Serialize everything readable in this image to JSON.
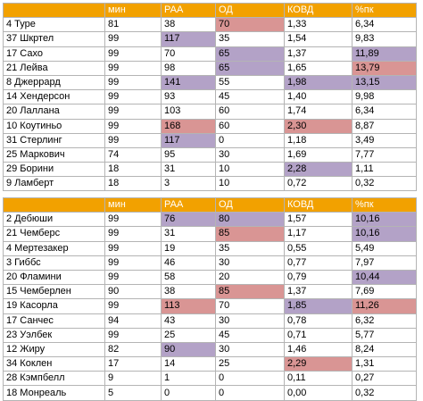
{
  "colors": {
    "header_bg": "#f2a100",
    "header_text": "#ffffff",
    "highlight_purple": "#b3a2c7",
    "highlight_red": "#d99594"
  },
  "table1": {
    "headers": [
      "",
      "мин",
      "РАА",
      "ОД",
      "КОВД",
      "%пк"
    ],
    "rows": [
      [
        {
          "v": "4 Туре"
        },
        {
          "v": "81"
        },
        {
          "v": "38"
        },
        {
          "v": "70",
          "h": "red"
        },
        {
          "v": "1,33"
        },
        {
          "v": "6,34"
        }
      ],
      [
        {
          "v": "37 Шкртел"
        },
        {
          "v": "99"
        },
        {
          "v": "117",
          "h": "purple"
        },
        {
          "v": "35"
        },
        {
          "v": "1,54"
        },
        {
          "v": "9,83"
        }
      ],
      [
        {
          "v": "17 Сахо"
        },
        {
          "v": "99"
        },
        {
          "v": "70"
        },
        {
          "v": "65",
          "h": "purple"
        },
        {
          "v": "1,37"
        },
        {
          "v": "11,89",
          "h": "purple"
        }
      ],
      [
        {
          "v": "21 Лейва"
        },
        {
          "v": "99"
        },
        {
          "v": "98"
        },
        {
          "v": "65",
          "h": "purple"
        },
        {
          "v": "1,65"
        },
        {
          "v": "13,79",
          "h": "red"
        }
      ],
      [
        {
          "v": "8 Джеррард"
        },
        {
          "v": "99"
        },
        {
          "v": "141",
          "h": "purple"
        },
        {
          "v": "55"
        },
        {
          "v": "1,98",
          "h": "purple"
        },
        {
          "v": "13,15",
          "h": "purple"
        }
      ],
      [
        {
          "v": "14 Хендерсон"
        },
        {
          "v": "99"
        },
        {
          "v": "93"
        },
        {
          "v": "45"
        },
        {
          "v": "1,40"
        },
        {
          "v": "9,98"
        }
      ],
      [
        {
          "v": "20 Лаллана"
        },
        {
          "v": "99"
        },
        {
          "v": "103"
        },
        {
          "v": "60"
        },
        {
          "v": "1,74"
        },
        {
          "v": "6,34"
        }
      ],
      [
        {
          "v": "10 Коутиньо"
        },
        {
          "v": "99"
        },
        {
          "v": "168",
          "h": "red"
        },
        {
          "v": "60"
        },
        {
          "v": "2,30",
          "h": "red"
        },
        {
          "v": "8,87"
        }
      ],
      [
        {
          "v": "31 Стерлинг"
        },
        {
          "v": "99"
        },
        {
          "v": "117",
          "h": "purple"
        },
        {
          "v": "0"
        },
        {
          "v": "1,18"
        },
        {
          "v": "3,49"
        }
      ],
      [
        {
          "v": "25 Маркович"
        },
        {
          "v": "74"
        },
        {
          "v": "95"
        },
        {
          "v": "30"
        },
        {
          "v": "1,69"
        },
        {
          "v": "7,77"
        }
      ],
      [
        {
          "v": "29 Борини"
        },
        {
          "v": "18"
        },
        {
          "v": "31"
        },
        {
          "v": "10"
        },
        {
          "v": "2,28",
          "h": "purple"
        },
        {
          "v": "1,11"
        }
      ],
      [
        {
          "v": "9 Ламберт"
        },
        {
          "v": "18"
        },
        {
          "v": "3"
        },
        {
          "v": "10"
        },
        {
          "v": "0,72"
        },
        {
          "v": "0,32"
        }
      ]
    ]
  },
  "table2": {
    "headers": [
      "",
      "мин",
      "РАА",
      "ОД",
      "КОВД",
      "%пк"
    ],
    "rows": [
      [
        {
          "v": "2 Дебюши"
        },
        {
          "v": "99"
        },
        {
          "v": "76",
          "h": "purple"
        },
        {
          "v": "80",
          "h": "purple"
        },
        {
          "v": "1,57"
        },
        {
          "v": "10,16",
          "h": "purple"
        }
      ],
      [
        {
          "v": "21 Чемберс"
        },
        {
          "v": "99"
        },
        {
          "v": "31"
        },
        {
          "v": "85",
          "h": "red"
        },
        {
          "v": "1,17"
        },
        {
          "v": "10,16",
          "h": "purple"
        }
      ],
      [
        {
          "v": "4 Мертезакер"
        },
        {
          "v": "99"
        },
        {
          "v": "19"
        },
        {
          "v": "35"
        },
        {
          "v": "0,55"
        },
        {
          "v": "5,49"
        }
      ],
      [
        {
          "v": "3 Гиббс"
        },
        {
          "v": "99"
        },
        {
          "v": "46"
        },
        {
          "v": "30"
        },
        {
          "v": "0,77"
        },
        {
          "v": "7,97"
        }
      ],
      [
        {
          "v": "20 Фламини"
        },
        {
          "v": "99"
        },
        {
          "v": "58"
        },
        {
          "v": "20"
        },
        {
          "v": "0,79"
        },
        {
          "v": "10,44",
          "h": "purple"
        }
      ],
      [
        {
          "v": "15 Чемберлен"
        },
        {
          "v": "90"
        },
        {
          "v": "38"
        },
        {
          "v": "85",
          "h": "red"
        },
        {
          "v": "1,37"
        },
        {
          "v": "7,69"
        }
      ],
      [
        {
          "v": "19 Касорла"
        },
        {
          "v": "99"
        },
        {
          "v": "113",
          "h": "red"
        },
        {
          "v": "70"
        },
        {
          "v": "1,85",
          "h": "purple"
        },
        {
          "v": "11,26",
          "h": "red"
        }
      ],
      [
        {
          "v": "17 Санчес"
        },
        {
          "v": "94"
        },
        {
          "v": "43"
        },
        {
          "v": "30"
        },
        {
          "v": "0,78"
        },
        {
          "v": "6,32"
        }
      ],
      [
        {
          "v": "23 Уэлбек"
        },
        {
          "v": "99"
        },
        {
          "v": "25"
        },
        {
          "v": "45"
        },
        {
          "v": "0,71"
        },
        {
          "v": "5,77"
        }
      ],
      [
        {
          "v": "12 Жиру"
        },
        {
          "v": "82"
        },
        {
          "v": "90",
          "h": "purple"
        },
        {
          "v": "30"
        },
        {
          "v": "1,46"
        },
        {
          "v": "8,24"
        }
      ],
      [
        {
          "v": "34 Коклен"
        },
        {
          "v": "17"
        },
        {
          "v": "14"
        },
        {
          "v": "25"
        },
        {
          "v": "2,29",
          "h": "red"
        },
        {
          "v": "1,31"
        }
      ],
      [
        {
          "v": "28 Кэмпбелл"
        },
        {
          "v": "9"
        },
        {
          "v": "1"
        },
        {
          "v": "0"
        },
        {
          "v": "0,11"
        },
        {
          "v": "0,27"
        }
      ],
      [
        {
          "v": "18 Монреаль"
        },
        {
          "v": "5"
        },
        {
          "v": "0"
        },
        {
          "v": "0"
        },
        {
          "v": "0,00"
        },
        {
          "v": "0,32"
        }
      ]
    ]
  }
}
